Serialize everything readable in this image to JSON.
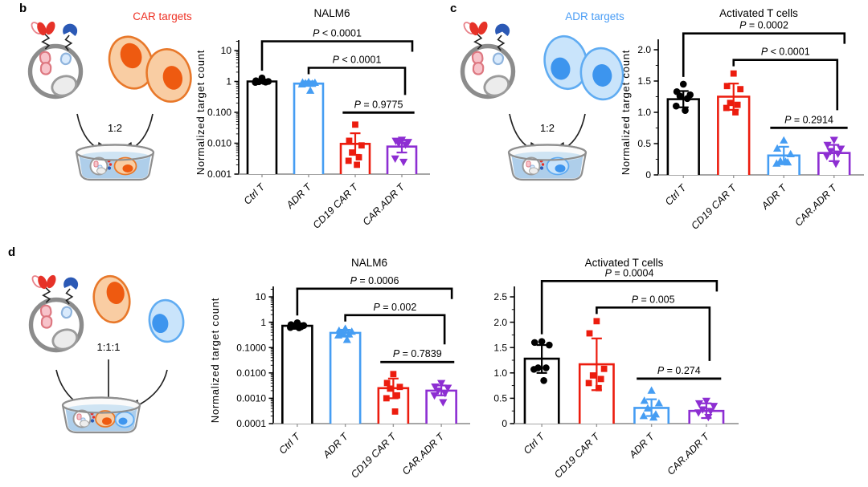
{
  "figure": {
    "background": "#ffffff",
    "panels": [
      {
        "letter": "b",
        "schematic": {
          "kind": "pair",
          "target_label": "CAR targets",
          "label_color": "#ee3124",
          "ratio": "1:2",
          "cell": "orange"
        },
        "chart_indexes": [
          0
        ]
      },
      {
        "letter": "c",
        "schematic": {
          "kind": "pair",
          "target_label": "ADR targets",
          "label_color": "#4a9df5",
          "ratio": "1:2",
          "cell": "blue"
        },
        "chart_indexes": [
          1
        ]
      },
      {
        "letter": "d",
        "schematic": {
          "kind": "triple",
          "target_label": "",
          "label_color": "#000000",
          "ratio": "1:1:1",
          "cell": "both"
        },
        "chart_indexes": [
          2,
          3
        ]
      }
    ],
    "palette": {
      "orange": {
        "fill": "#f9cda3",
        "stroke": "#e8782a",
        "nucleus": "#ee5a10"
      },
      "blue": {
        "fill": "#c9e4fb",
        "stroke": "#60acf2",
        "nucleus": "#3d95ee"
      },
      "bar_black": "#000000",
      "bar_blue": "#459df3",
      "bar_red": "#ec1c0e",
      "bar_purple": "#8d2ed2"
    }
  },
  "chart_data": [
    {
      "type": "bar",
      "panel": "b",
      "title": "NALM6",
      "ylabel": "Normalized target count",
      "scale": "log",
      "ylim": [
        0.001,
        10
      ],
      "yticks": [
        {
          "value": 10,
          "label": "10"
        },
        {
          "value": 1,
          "label": "1"
        },
        {
          "value": 0.1,
          "label": "0.100"
        },
        {
          "value": 0.01,
          "label": "0.010"
        },
        {
          "value": 0.001,
          "label": "0.001"
        }
      ],
      "categories": [
        "Ctrl T",
        "ADR T",
        "CD19 CAR T",
        "CAR.ADR T"
      ],
      "groups": [
        {
          "label": "Ctrl T",
          "color": "#000000",
          "marker": "circle",
          "bar": 1.0,
          "err_hi": 1.12,
          "err_lo": 0.88,
          "points": [
            1.3,
            1.05,
            1.0,
            0.98,
            0.95,
            0.93,
            1.0
          ]
        },
        {
          "label": "ADR T",
          "color": "#459df3",
          "marker": "triangle-up",
          "bar": 0.85,
          "err_hi": 1.0,
          "err_lo": 0.72,
          "points": [
            0.95,
            0.92,
            0.9,
            0.87,
            0.84,
            0.8,
            0.5
          ]
        },
        {
          "label": "CD19 CAR T",
          "color": "#ec1c0e",
          "marker": "square",
          "bar": 0.0095,
          "err_hi": 0.021,
          "err_lo": 0.0042,
          "points": [
            0.04,
            0.012,
            0.0085,
            0.005,
            0.0035,
            0.0027,
            0.002
          ]
        },
        {
          "label": "CAR.ADR T",
          "color": "#8d2ed2",
          "marker": "triangle-down",
          "bar": 0.0078,
          "err_hi": 0.0125,
          "err_lo": 0.005,
          "points": [
            0.013,
            0.012,
            0.011,
            0.01,
            0.009,
            0.0032,
            0.0025
          ]
        }
      ],
      "comparisons": [
        {
          "from": 2,
          "to": 3,
          "label": "P = 0.9775",
          "style": "line"
        },
        {
          "from": 1,
          "to": 3,
          "label": "P < 0.0001",
          "style": "bracket"
        },
        {
          "from": 0,
          "to": 3,
          "label": "P < 0.0001",
          "style": "bracket"
        }
      ]
    },
    {
      "type": "bar",
      "panel": "c",
      "title": "Activated T cells",
      "ylabel": "Normalized target count",
      "scale": "linear",
      "ylim": [
        0,
        2.0
      ],
      "yticks": [
        {
          "value": 2.0,
          "label": "2.0"
        },
        {
          "value": 1.5,
          "label": "1.5"
        },
        {
          "value": 1.0,
          "label": "1.0"
        },
        {
          "value": 0.5,
          "label": "0.5"
        },
        {
          "value": 0,
          "label": "0"
        }
      ],
      "categories": [
        "Ctrl T",
        "CD19 CAR T",
        "ADR T",
        "CAR.ADR T"
      ],
      "groups": [
        {
          "label": "Ctrl T",
          "color": "#000000",
          "marker": "circle",
          "bar": 1.21,
          "err_hi": 1.34,
          "err_lo": 1.08,
          "points": [
            1.45,
            1.33,
            1.28,
            1.26,
            1.22,
            1.1,
            1.03
          ]
        },
        {
          "label": "CD19 CAR T",
          "color": "#ec1c0e",
          "marker": "square",
          "bar": 1.25,
          "err_hi": 1.46,
          "err_lo": 1.04,
          "points": [
            1.62,
            1.42,
            1.37,
            1.15,
            1.12,
            1.07,
            1.0
          ]
        },
        {
          "label": "ADR T",
          "color": "#459df3",
          "marker": "triangle-up",
          "bar": 0.31,
          "err_hi": 0.45,
          "err_lo": 0.17,
          "points": [
            0.55,
            0.42,
            0.33,
            0.22,
            0.2,
            0.18,
            0.21
          ]
        },
        {
          "label": "CAR.ADR T",
          "color": "#8d2ed2",
          "marker": "triangle-down",
          "bar": 0.35,
          "err_hi": 0.48,
          "err_lo": 0.22,
          "points": [
            0.56,
            0.48,
            0.42,
            0.38,
            0.34,
            0.3,
            0.18
          ]
        }
      ],
      "comparisons": [
        {
          "from": 2,
          "to": 3,
          "label": "P = 0.2914",
          "style": "line"
        },
        {
          "from": 1,
          "to": 3,
          "label": "P < 0.0001",
          "style": "bracket"
        },
        {
          "from": 0,
          "to": 3,
          "label": "P = 0.0002",
          "style": "bracket"
        }
      ]
    },
    {
      "type": "bar",
      "panel": "d",
      "title": "NALM6",
      "ylabel": "Normalized target count",
      "scale": "log",
      "ylim": [
        0.0001,
        10
      ],
      "yticks": [
        {
          "value": 10,
          "label": "10"
        },
        {
          "value": 1,
          "label": "1"
        },
        {
          "value": 0.1,
          "label": "0.1000"
        },
        {
          "value": 0.01,
          "label": "0.0100"
        },
        {
          "value": 0.001,
          "label": "0.0010"
        },
        {
          "value": 0.0001,
          "label": "0.0001"
        }
      ],
      "categories": [
        "Ctrl T",
        "ADR T",
        "CD19 CAR T",
        "CAR.ADR T"
      ],
      "groups": [
        {
          "label": "Ctrl T",
          "color": "#000000",
          "marker": "circle",
          "bar": 0.72,
          "err_hi": 0.9,
          "err_lo": 0.55,
          "points": [
            0.95,
            0.8,
            0.74,
            0.7,
            0.66,
            0.62,
            0.6
          ]
        },
        {
          "label": "ADR T",
          "color": "#459df3",
          "marker": "triangle-up",
          "bar": 0.38,
          "err_hi": 0.5,
          "err_lo": 0.27,
          "points": [
            0.55,
            0.46,
            0.42,
            0.38,
            0.33,
            0.3,
            0.2
          ]
        },
        {
          "label": "CD19 CAR T",
          "color": "#ec1c0e",
          "marker": "square",
          "bar": 0.0025,
          "err_hi": 0.006,
          "err_lo": 0.001,
          "points": [
            0.009,
            0.004,
            0.0028,
            0.0024,
            0.0013,
            0.001,
            0.0003
          ]
        },
        {
          "label": "CAR.ADR T",
          "color": "#8d2ed2",
          "marker": "triangle-down",
          "bar": 0.002,
          "err_hi": 0.0032,
          "err_lo": 0.0013,
          "points": [
            0.004,
            0.0029,
            0.0026,
            0.002,
            0.0016,
            0.0013,
            0.0007
          ]
        }
      ],
      "comparisons": [
        {
          "from": 2,
          "to": 3,
          "label": "P = 0.7839",
          "style": "line"
        },
        {
          "from": 1,
          "to": 3,
          "label": "P = 0.002",
          "style": "bracket"
        },
        {
          "from": 0,
          "to": 3,
          "label": "P = 0.0006",
          "style": "bracket"
        }
      ]
    },
    {
      "type": "bar",
      "panel": "d",
      "title": "Activated T cells",
      "ylabel": "",
      "scale": "linear",
      "ylim": [
        0,
        2.5
      ],
      "yticks": [
        {
          "value": 2.5,
          "label": "2.5"
        },
        {
          "value": 2.0,
          "label": "2.0"
        },
        {
          "value": 1.5,
          "label": "1.5"
        },
        {
          "value": 1.0,
          "label": "1.0"
        },
        {
          "value": 0.5,
          "label": "0.5"
        },
        {
          "value": 0,
          "label": "0"
        }
      ],
      "categories": [
        "Ctrl T",
        "CD19 CAR T",
        "ADR T",
        "CAR.ADR T"
      ],
      "groups": [
        {
          "label": "Ctrl T",
          "color": "#000000",
          "marker": "circle",
          "bar": 1.28,
          "err_hi": 1.55,
          "err_lo": 1.0,
          "points": [
            1.62,
            1.6,
            1.55,
            1.1,
            1.1,
            1.07,
            0.85
          ]
        },
        {
          "label": "CD19 CAR T",
          "color": "#ec1c0e",
          "marker": "square",
          "bar": 1.17,
          "err_hi": 1.68,
          "err_lo": 0.66,
          "points": [
            2.02,
            1.78,
            1.08,
            0.95,
            0.88,
            0.8,
            0.7
          ]
        },
        {
          "label": "ADR T",
          "color": "#459df3",
          "marker": "triangle-up",
          "bar": 0.31,
          "err_hi": 0.48,
          "err_lo": 0.15,
          "points": [
            0.65,
            0.45,
            0.4,
            0.3,
            0.18,
            0.15,
            0.12
          ]
        },
        {
          "label": "CAR.ADR T",
          "color": "#8d2ed2",
          "marker": "triangle-down",
          "bar": 0.25,
          "err_hi": 0.4,
          "err_lo": 0.11,
          "points": [
            0.45,
            0.4,
            0.35,
            0.28,
            0.25,
            0.22,
            0.13
          ]
        }
      ],
      "comparisons": [
        {
          "from": 2,
          "to": 3,
          "label": "P = 0.274",
          "style": "line"
        },
        {
          "from": 1,
          "to": 3,
          "label": "P = 0.005",
          "style": "bracket"
        },
        {
          "from": 0,
          "to": 3,
          "label": "P = 0.0004",
          "style": "bracket"
        }
      ]
    }
  ]
}
